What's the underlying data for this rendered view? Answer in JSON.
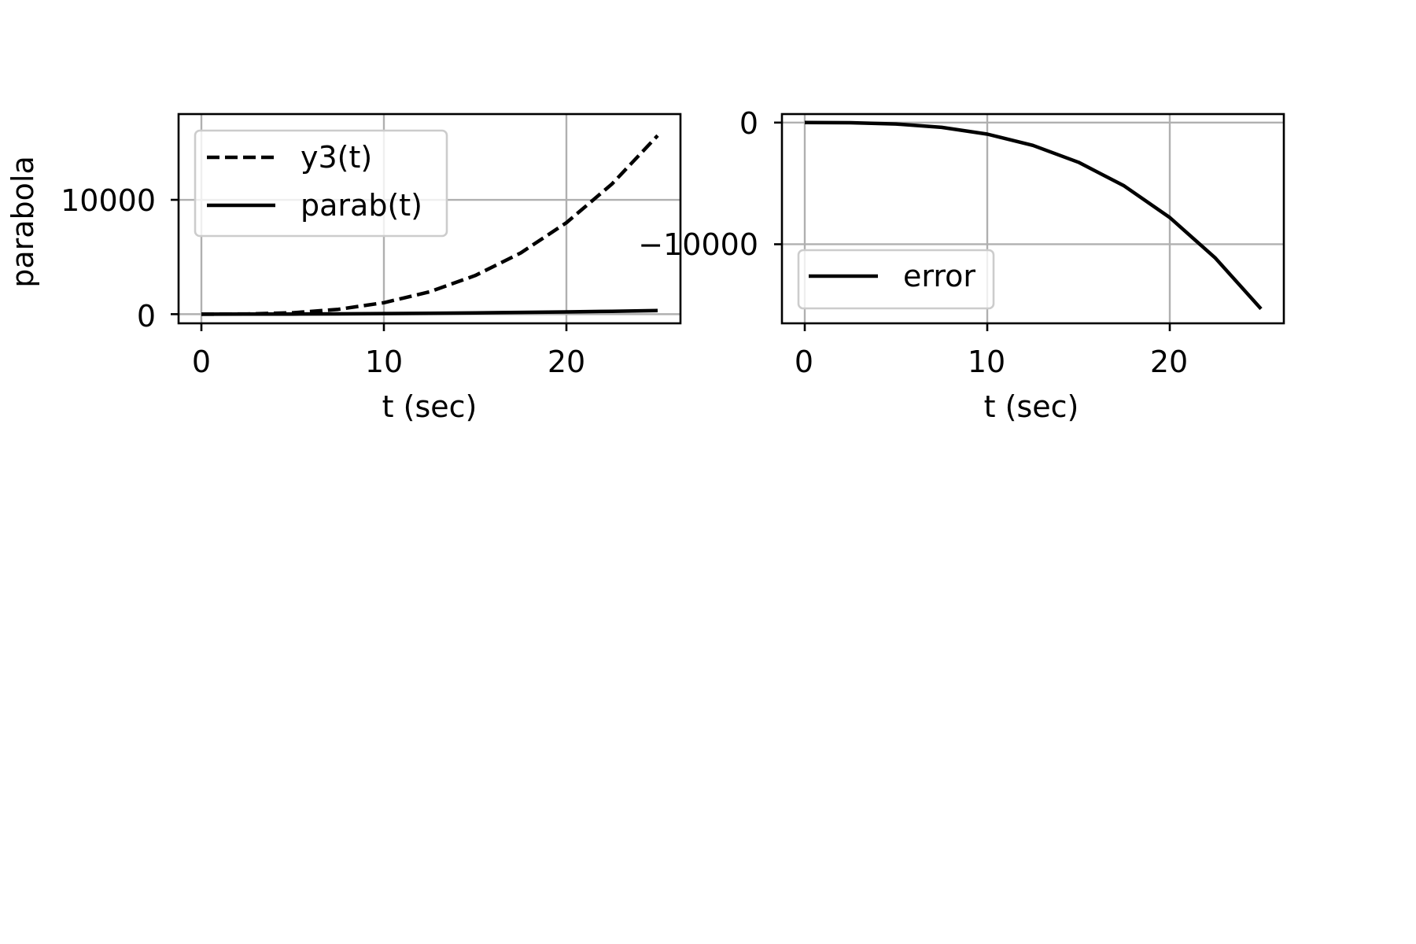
{
  "chart_data": [
    {
      "type": "line",
      "title": "",
      "xlabel": "t (sec)",
      "ylabel": "parabola",
      "xlim": [
        -1.25,
        26.25
      ],
      "ylim": [
        -800,
        17500
      ],
      "xticks": [
        0,
        10,
        20
      ],
      "yticks": [
        0,
        10000
      ],
      "grid": true,
      "legend_placement": "upper-left",
      "series": [
        {
          "name": "y3(t)",
          "style": "dashed",
          "color": "#000000",
          "x": [
            0,
            2.5,
            5,
            7.5,
            10,
            12.5,
            15,
            17.5,
            20,
            22.5,
            25
          ],
          "y": [
            0,
            16,
            125,
            422,
            1000,
            1953,
            3375,
            5359,
            8000,
            11391,
            15625
          ]
        },
        {
          "name": "parab(t)",
          "style": "solid",
          "color": "#000000",
          "x": [
            0,
            2.5,
            5,
            7.5,
            10,
            12.5,
            15,
            17.5,
            20,
            22.5,
            25
          ],
          "y": [
            0,
            3,
            13,
            28,
            50,
            78,
            113,
            153,
            200,
            253,
            313
          ]
        }
      ]
    },
    {
      "type": "line",
      "title": "",
      "xlabel": "t (sec)",
      "ylabel": "",
      "xlim": [
        -1.25,
        26.25
      ],
      "ylim": [
        -16500,
        700
      ],
      "xticks": [
        0,
        10,
        20
      ],
      "yticks": [
        -10000,
        0
      ],
      "grid": true,
      "legend_placement": "lower-left",
      "series": [
        {
          "name": "error",
          "style": "solid",
          "color": "#000000",
          "x": [
            0,
            2.5,
            5,
            7.5,
            10,
            12.5,
            15,
            17.5,
            20,
            22.5,
            25
          ],
          "y": [
            0,
            -13,
            -112,
            -394,
            -950,
            -1875,
            -3262,
            -5206,
            -7800,
            -11138,
            -15312
          ]
        }
      ]
    }
  ],
  "tick_text": {
    "left_x": [
      "0",
      "10",
      "20"
    ],
    "left_y": [
      "0",
      "10000"
    ],
    "right_x": [
      "0",
      "10",
      "20"
    ],
    "right_y": [
      "0",
      "−10000"
    ]
  }
}
